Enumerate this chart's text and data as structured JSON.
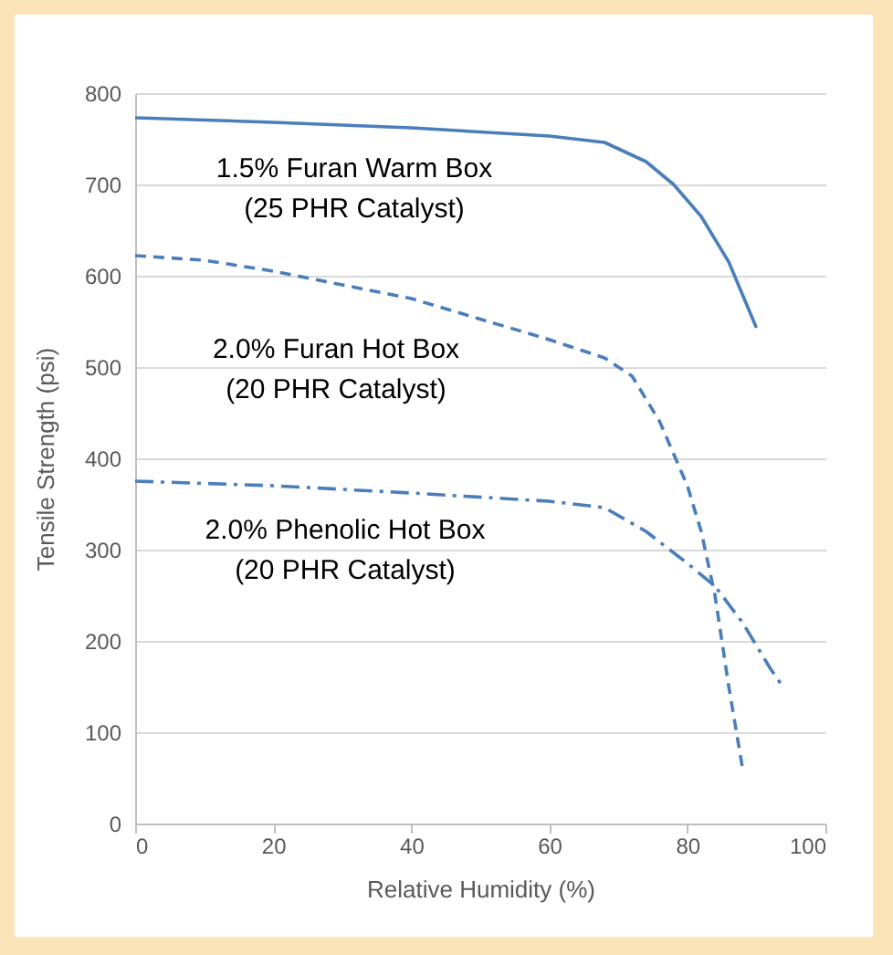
{
  "chart_data": {
    "type": "line",
    "xlabel": "Relative Humidity (%)",
    "ylabel": "Tensile Strength (psi)",
    "xlim": [
      0,
      100
    ],
    "xticks": [
      0,
      20,
      40,
      60,
      80,
      100
    ],
    "ylim": [
      0,
      800
    ],
    "yticks": [
      0,
      100,
      200,
      300,
      400,
      500,
      600,
      700,
      800
    ],
    "grid": "y",
    "series": [
      {
        "color": "#4a7ebb",
        "line_style": "solid",
        "x": [
          0,
          20,
          40,
          60,
          68,
          74,
          78,
          82,
          86,
          90
        ],
        "values": [
          773,
          768,
          762,
          753,
          746,
          725,
          700,
          665,
          615,
          543
        ]
      },
      {
        "color": "#4a7ebb",
        "line_style": "dashed",
        "x": [
          0,
          10,
          20,
          40,
          60,
          68,
          72,
          76,
          80,
          82,
          84,
          86,
          88
        ],
        "values": [
          622,
          617,
          605,
          575,
          530,
          510,
          490,
          440,
          370,
          320,
          250,
          150,
          60
        ]
      },
      {
        "color": "#4a7ebb",
        "line_style": "dashdot",
        "x": [
          0,
          20,
          40,
          60,
          68,
          74,
          80,
          84,
          88,
          92,
          94
        ],
        "values": [
          375,
          370,
          362,
          353,
          346,
          320,
          285,
          260,
          220,
          170,
          148
        ]
      }
    ],
    "annotations": [
      "1.5% Furan Warm Box",
      "(25 PHR Catalyst)",
      "2.0% Furan Hot Box",
      "(20 PHR Catalyst)",
      "2.0% Phenolic Hot Box",
      "(20 PHR Catalyst)"
    ]
  }
}
